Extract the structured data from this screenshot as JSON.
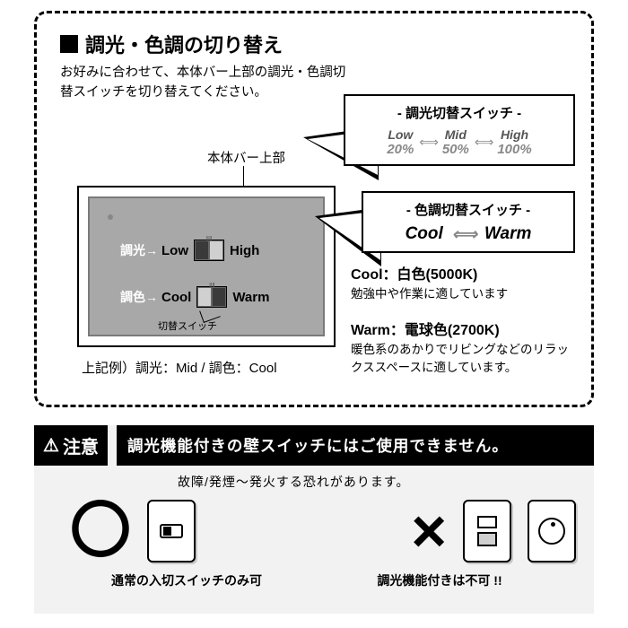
{
  "title": "調光・色調の切り替え",
  "subtitle": "お好みに合わせて、本体バー上部の調光・色調切替スイッチを切り替えてください。",
  "bar_label": "本体バー上部",
  "device": {
    "row1": {
      "arrow_label": "調光→",
      "left": "Low",
      "right": "High"
    },
    "row2": {
      "arrow_label": "調色→",
      "left": "Cool",
      "right": "Warm"
    },
    "switch_desc": "切替スイッチ"
  },
  "example": "上記例）調光：Mid / 調色：Cool",
  "callout_dim": {
    "title": "- 調光切替スイッチ -",
    "levels": [
      {
        "top": "Low",
        "bot": "20%"
      },
      {
        "top": "Mid",
        "bot": "50%"
      },
      {
        "top": "High",
        "bot": "100%"
      }
    ],
    "arrow": "⇐⇒"
  },
  "callout_color": {
    "title": "- 色調切替スイッチ -",
    "left": "Cool",
    "arrow": "⇐⇒",
    "right": "Warm"
  },
  "info_cool": {
    "head": "Cool：白色(5000K)",
    "sub": "勉強中や作業に適しています"
  },
  "info_warm": {
    "head": "Warm：電球色(2700K)",
    "sub": "暖色系のあかりでリビングなどのリラックススペースに適しています。"
  },
  "caution": {
    "badge": "注意",
    "title": "調光機能付きの壁スイッチにはご使用できません。",
    "sub": "故障/発煙～発火する恐れがあります。",
    "ok": "〇",
    "ng": "×",
    "ok_label": "通常の入切スイッチのみ可",
    "ng_label": "調光機能付きは不可 !!"
  },
  "colors": {
    "dash_border": "#000000",
    "device_bg": "#a8a8a8",
    "caution_bg": "#f2f2f2"
  }
}
